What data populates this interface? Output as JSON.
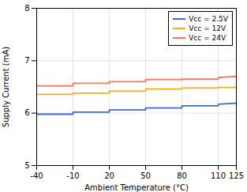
{
  "chart_data": {
    "type": "line",
    "xlabel": "Ambient Temperature (°C)",
    "ylabel": "Supply Current (mA)",
    "x": [
      -40,
      -10,
      -10,
      20,
      20,
      50,
      50,
      80,
      80,
      110,
      110,
      125
    ],
    "series": [
      {
        "name": "Vcc = 2.5V",
        "values": [
          5.98,
          5.98,
          6.02,
          6.02,
          6.06,
          6.06,
          6.1,
          6.1,
          6.14,
          6.14,
          6.17,
          6.19
        ]
      },
      {
        "name": "Vcc = 12V",
        "values": [
          6.36,
          6.36,
          6.38,
          6.38,
          6.42,
          6.42,
          6.46,
          6.46,
          6.48,
          6.48,
          6.49,
          6.49
        ]
      },
      {
        "name": "Vcc = 24V",
        "values": [
          6.52,
          6.52,
          6.57,
          6.57,
          6.6,
          6.6,
          6.64,
          6.64,
          6.65,
          6.65,
          6.68,
          6.7
        ]
      }
    ],
    "xlim": [
      -40,
      125
    ],
    "ylim": [
      5,
      8
    ],
    "xticks": [
      -40,
      -10,
      20,
      50,
      80,
      110,
      125
    ],
    "yticks": [
      5,
      6,
      7,
      8
    ],
    "grid": true,
    "legend": "upper right"
  }
}
